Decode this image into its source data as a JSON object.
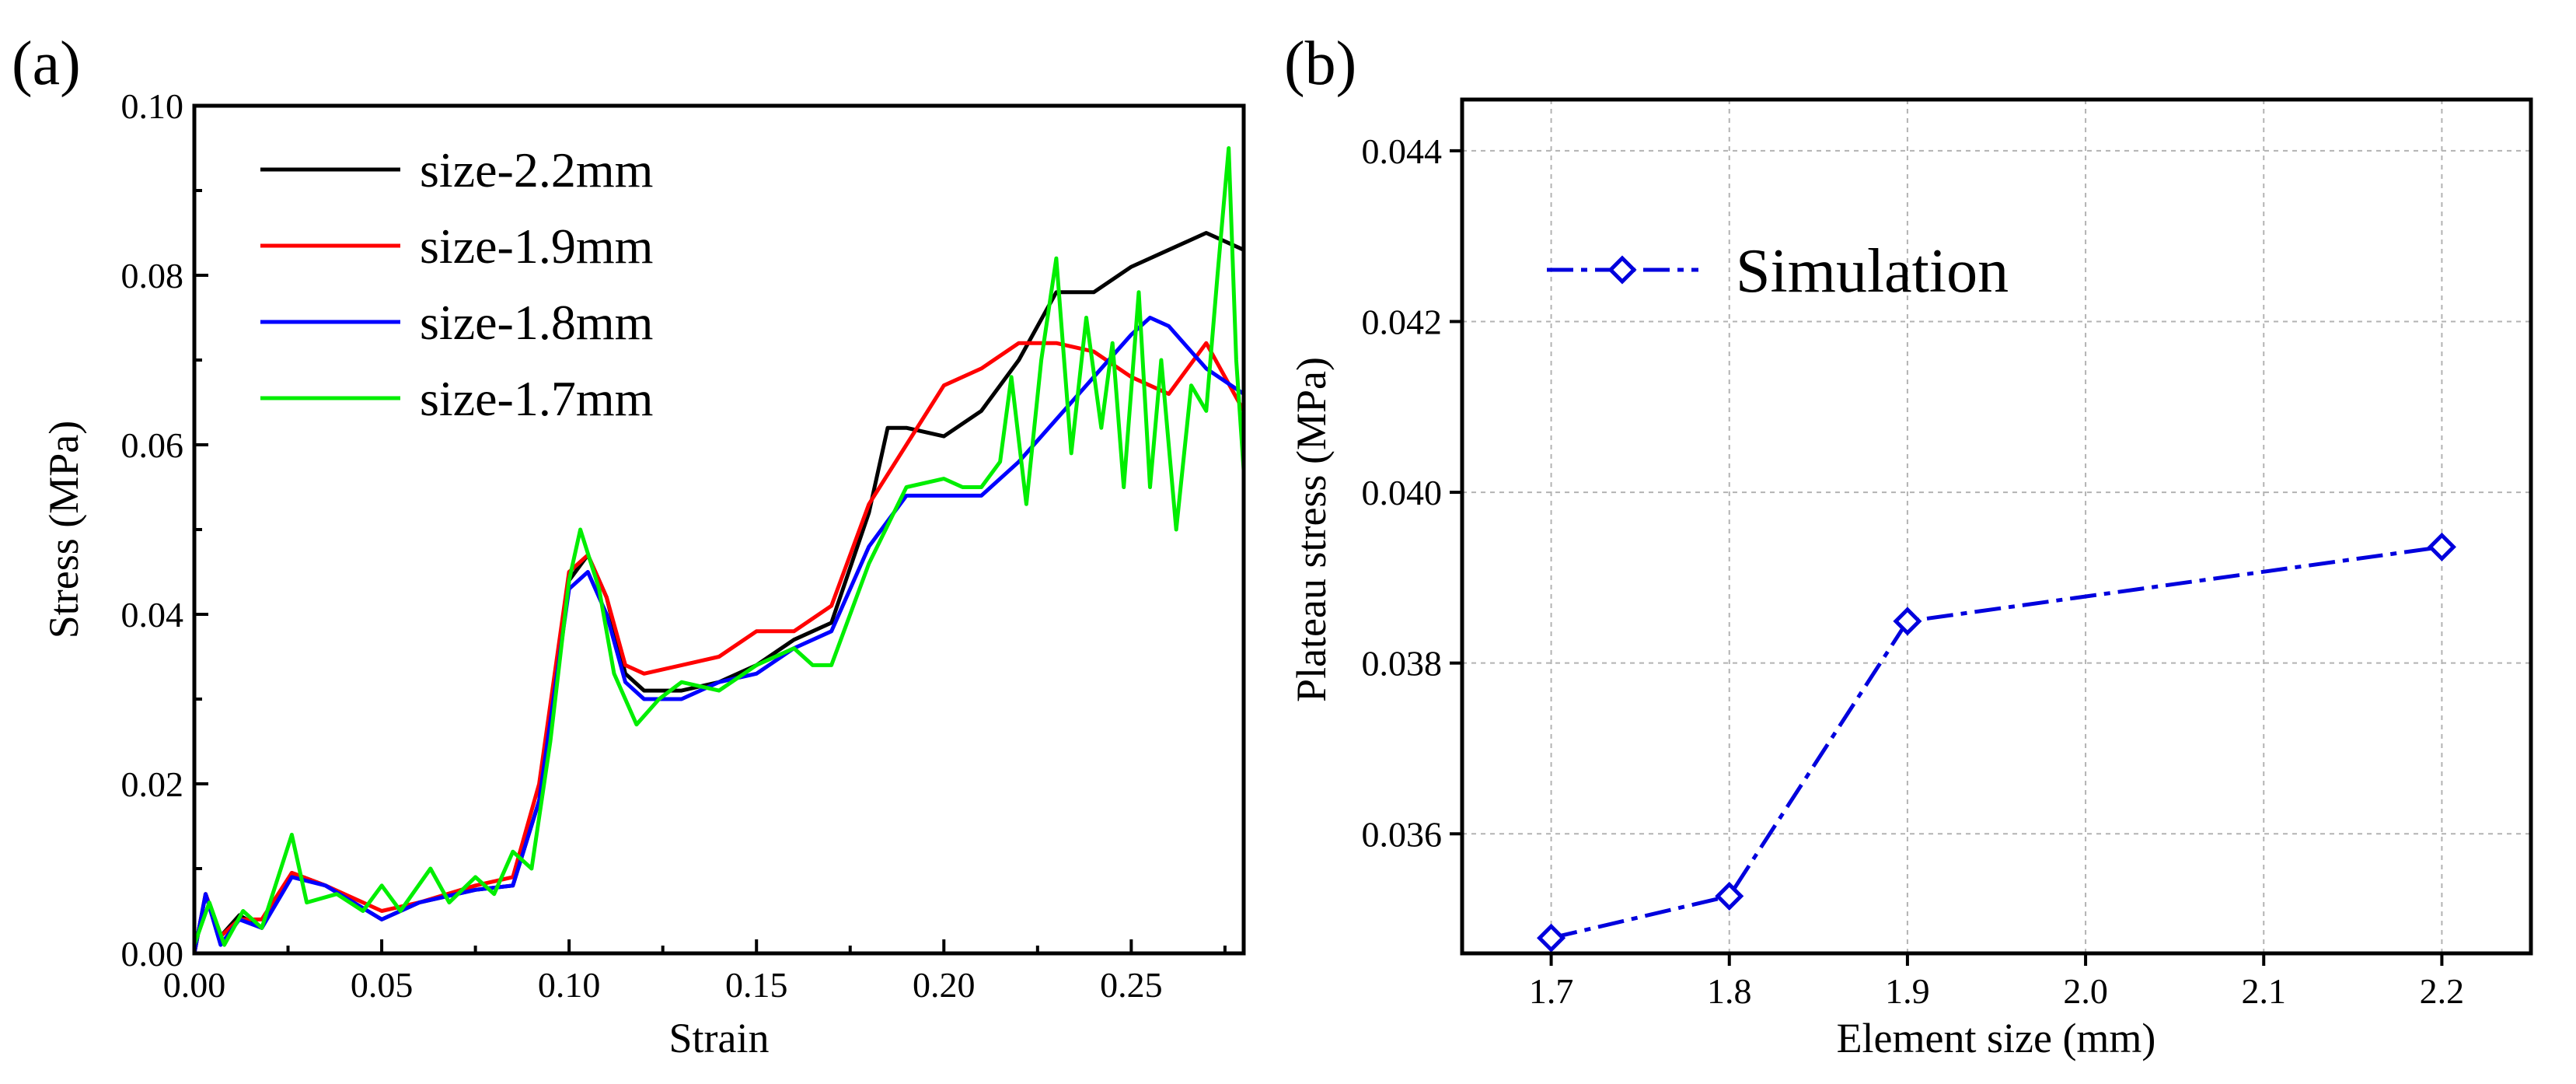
{
  "chart_data": [
    {
      "panel": "(a)",
      "type": "line",
      "xlabel": "Strain",
      "ylabel": "Stress (MPa)",
      "xlim": [
        0,
        0.28
      ],
      "ylim": [
        0,
        0.1
      ],
      "xticks": [
        "0.00",
        "0.05",
        "0.10",
        "0.15",
        "0.20",
        "0.25"
      ],
      "yticks": [
        "0.00",
        "0.02",
        "0.04",
        "0.06",
        "0.08",
        "0.10"
      ],
      "legend_position": "top-left",
      "series": [
        {
          "name": "size-2.2mm",
          "color": "#000000",
          "points": [
            [
              0,
              0.0
            ],
            [
              0.003,
              0.007
            ],
            [
              0.007,
              0.002
            ],
            [
              0.012,
              0.0045
            ],
            [
              0.018,
              0.003
            ],
            [
              0.026,
              0.0095
            ],
            [
              0.035,
              0.008
            ],
            [
              0.05,
              0.004
            ],
            [
              0.06,
              0.006
            ],
            [
              0.075,
              0.0075
            ],
            [
              0.085,
              0.008
            ],
            [
              0.092,
              0.018
            ],
            [
              0.1,
              0.044
            ],
            [
              0.105,
              0.047
            ],
            [
              0.11,
              0.042
            ],
            [
              0.115,
              0.033
            ],
            [
              0.12,
              0.031
            ],
            [
              0.13,
              0.031
            ],
            [
              0.14,
              0.032
            ],
            [
              0.15,
              0.034
            ],
            [
              0.16,
              0.037
            ],
            [
              0.17,
              0.039
            ],
            [
              0.18,
              0.052
            ],
            [
              0.185,
              0.062
            ],
            [
              0.19,
              0.062
            ],
            [
              0.2,
              0.061
            ],
            [
              0.21,
              0.064
            ],
            [
              0.22,
              0.07
            ],
            [
              0.23,
              0.078
            ],
            [
              0.24,
              0.078
            ],
            [
              0.25,
              0.081
            ],
            [
              0.26,
              0.083
            ],
            [
              0.27,
              0.085
            ],
            [
              0.28,
              0.083
            ]
          ]
        },
        {
          "name": "size-1.9mm",
          "color": "#ff0000",
          "points": [
            [
              0,
              0.0
            ],
            [
              0.003,
              0.007
            ],
            [
              0.007,
              0.002
            ],
            [
              0.012,
              0.004
            ],
            [
              0.018,
              0.004
            ],
            [
              0.026,
              0.0095
            ],
            [
              0.035,
              0.008
            ],
            [
              0.05,
              0.005
            ],
            [
              0.06,
              0.006
            ],
            [
              0.075,
              0.008
            ],
            [
              0.085,
              0.009
            ],
            [
              0.092,
              0.02
            ],
            [
              0.1,
              0.045
            ],
            [
              0.105,
              0.047
            ],
            [
              0.11,
              0.042
            ],
            [
              0.115,
              0.034
            ],
            [
              0.12,
              0.033
            ],
            [
              0.13,
              0.034
            ],
            [
              0.14,
              0.035
            ],
            [
              0.15,
              0.038
            ],
            [
              0.16,
              0.038
            ],
            [
              0.17,
              0.041
            ],
            [
              0.18,
              0.053
            ],
            [
              0.19,
              0.06
            ],
            [
              0.2,
              0.067
            ],
            [
              0.21,
              0.069
            ],
            [
              0.22,
              0.072
            ],
            [
              0.23,
              0.072
            ],
            [
              0.24,
              0.071
            ],
            [
              0.25,
              0.068
            ],
            [
              0.26,
              0.066
            ],
            [
              0.27,
              0.072
            ],
            [
              0.28,
              0.064
            ]
          ]
        },
        {
          "name": "size-1.8mm",
          "color": "#0000ff",
          "points": [
            [
              0,
              0.0
            ],
            [
              0.003,
              0.007
            ],
            [
              0.007,
              0.001
            ],
            [
              0.012,
              0.004
            ],
            [
              0.018,
              0.003
            ],
            [
              0.026,
              0.009
            ],
            [
              0.035,
              0.008
            ],
            [
              0.05,
              0.004
            ],
            [
              0.06,
              0.006
            ],
            [
              0.075,
              0.0075
            ],
            [
              0.085,
              0.008
            ],
            [
              0.092,
              0.018
            ],
            [
              0.1,
              0.043
            ],
            [
              0.105,
              0.045
            ],
            [
              0.11,
              0.04
            ],
            [
              0.115,
              0.032
            ],
            [
              0.12,
              0.03
            ],
            [
              0.13,
              0.03
            ],
            [
              0.14,
              0.032
            ],
            [
              0.15,
              0.033
            ],
            [
              0.16,
              0.036
            ],
            [
              0.17,
              0.038
            ],
            [
              0.18,
              0.048
            ],
            [
              0.19,
              0.054
            ],
            [
              0.2,
              0.054
            ],
            [
              0.21,
              0.054
            ],
            [
              0.22,
              0.058
            ],
            [
              0.23,
              0.063
            ],
            [
              0.24,
              0.068
            ],
            [
              0.25,
              0.073
            ],
            [
              0.255,
              0.075
            ],
            [
              0.26,
              0.074
            ],
            [
              0.27,
              0.069
            ],
            [
              0.28,
              0.066
            ]
          ]
        },
        {
          "name": "size-1.7mm",
          "color": "#00ee00",
          "points": [
            [
              0,
              0.001
            ],
            [
              0.004,
              0.006
            ],
            [
              0.008,
              0.001
            ],
            [
              0.013,
              0.005
            ],
            [
              0.018,
              0.003
            ],
            [
              0.026,
              0.014
            ],
            [
              0.03,
              0.006
            ],
            [
              0.038,
              0.007
            ],
            [
              0.045,
              0.005
            ],
            [
              0.05,
              0.008
            ],
            [
              0.055,
              0.005
            ],
            [
              0.063,
              0.01
            ],
            [
              0.068,
              0.006
            ],
            [
              0.075,
              0.009
            ],
            [
              0.08,
              0.007
            ],
            [
              0.085,
              0.012
            ],
            [
              0.09,
              0.01
            ],
            [
              0.095,
              0.025
            ],
            [
              0.1,
              0.044
            ],
            [
              0.103,
              0.05
            ],
            [
              0.108,
              0.043
            ],
            [
              0.112,
              0.033
            ],
            [
              0.118,
              0.027
            ],
            [
              0.124,
              0.03
            ],
            [
              0.13,
              0.032
            ],
            [
              0.14,
              0.031
            ],
            [
              0.15,
              0.034
            ],
            [
              0.16,
              0.036
            ],
            [
              0.165,
              0.034
            ],
            [
              0.17,
              0.034
            ],
            [
              0.18,
              0.046
            ],
            [
              0.19,
              0.055
            ],
            [
              0.2,
              0.056
            ],
            [
              0.205,
              0.055
            ],
            [
              0.21,
              0.055
            ],
            [
              0.215,
              0.058
            ],
            [
              0.218,
              0.068
            ],
            [
              0.222,
              0.053
            ],
            [
              0.226,
              0.07
            ],
            [
              0.23,
              0.082
            ],
            [
              0.234,
              0.059
            ],
            [
              0.238,
              0.075
            ],
            [
              0.242,
              0.062
            ],
            [
              0.245,
              0.072
            ],
            [
              0.248,
              0.055
            ],
            [
              0.252,
              0.078
            ],
            [
              0.255,
              0.055
            ],
            [
              0.258,
              0.07
            ],
            [
              0.262,
              0.05
            ],
            [
              0.266,
              0.067
            ],
            [
              0.27,
              0.064
            ],
            [
              0.273,
              0.08
            ],
            [
              0.276,
              0.095
            ],
            [
              0.278,
              0.07
            ],
            [
              0.28,
              0.057
            ]
          ]
        }
      ]
    },
    {
      "panel": "(b)",
      "type": "line",
      "xlabel": "Element size (mm)",
      "ylabel": "Plateau stress (MPa)",
      "xlim": [
        1.65,
        2.25
      ],
      "ylim": [
        0.0346,
        0.0446
      ],
      "xticks": [
        "1.7",
        "1.8",
        "1.9",
        "2.0",
        "2.1",
        "2.2"
      ],
      "yticks": [
        "0.036",
        "0.038",
        "0.040",
        "0.042",
        "0.044"
      ],
      "grid": true,
      "legend_position": "top-left",
      "series": [
        {
          "name": "Simulation",
          "color": "#0000dd",
          "marker": "diamond",
          "line_style": "dash-dot",
          "x": [
            1.7,
            1.8,
            1.9,
            2.2
          ],
          "y": [
            0.03478,
            0.03527,
            0.03849,
            0.03936
          ]
        }
      ]
    }
  ]
}
